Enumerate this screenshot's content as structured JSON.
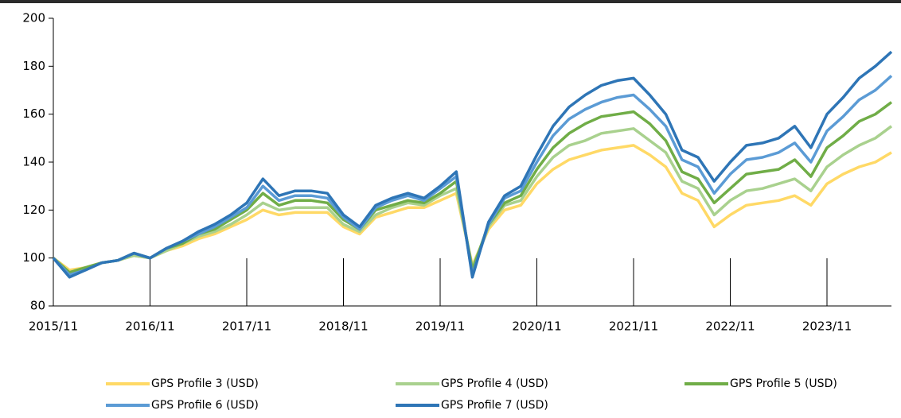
{
  "chart_data": {
    "type": "line",
    "categories": [
      "2015/11",
      null,
      null,
      null,
      null,
      null,
      "2016/11",
      null,
      null,
      null,
      null,
      null,
      "2017/11",
      null,
      null,
      null,
      null,
      null,
      "2018/11",
      null,
      null,
      null,
      null,
      null,
      "2019/11",
      null,
      null,
      null,
      null,
      null,
      "2020/11",
      null,
      null,
      null,
      null,
      null,
      "2021/11",
      null,
      null,
      null,
      null,
      null,
      "2022/11",
      null,
      null,
      null,
      null,
      null,
      "2023/11",
      null,
      null,
      null,
      null
    ],
    "series": [
      {
        "name": "GPS Profile 3 (USD)",
        "color": "#ffd966",
        "values": [
          100,
          95,
          96,
          98,
          99,
          101,
          100,
          103,
          105,
          108,
          110,
          113,
          116,
          120,
          118,
          119,
          119,
          119,
          113,
          110,
          117,
          119,
          121,
          121,
          124,
          127,
          97,
          112,
          120,
          122,
          131,
          137,
          141,
          143,
          145,
          146,
          147,
          143,
          138,
          127,
          124,
          113,
          118,
          122,
          123,
          124,
          126,
          122,
          131,
          135,
          138,
          140,
          144
        ]
      },
      {
        "name": "GPS Profile 4 (USD)",
        "color": "#a9d18e",
        "values": [
          100,
          94,
          96,
          98,
          99,
          101,
          100,
          103,
          106,
          109,
          111,
          114,
          118,
          123,
          120,
          121,
          121,
          121,
          114,
          111,
          118,
          121,
          123,
          122,
          126,
          129,
          96,
          113,
          122,
          124,
          134,
          142,
          147,
          149,
          152,
          153,
          154,
          149,
          144,
          132,
          129,
          118,
          124,
          128,
          129,
          131,
          133,
          128,
          138,
          143,
          147,
          150,
          155
        ]
      },
      {
        "name": "GPS Profile 5 (USD)",
        "color": "#70ad47",
        "values": [
          100,
          94,
          96,
          98,
          99,
          102,
          100,
          104,
          106,
          110,
          112,
          116,
          120,
          127,
          122,
          124,
          124,
          123,
          116,
          112,
          120,
          122,
          124,
          123,
          127,
          132,
          95,
          114,
          123,
          126,
          137,
          146,
          152,
          156,
          159,
          160,
          161,
          156,
          149,
          136,
          133,
          123,
          129,
          135,
          136,
          137,
          141,
          134,
          146,
          151,
          157,
          160,
          165
        ]
      },
      {
        "name": "GPS Profile 6 (USD)",
        "color": "#5b9bd5",
        "values": [
          100,
          93,
          95,
          98,
          99,
          102,
          100,
          104,
          107,
          110,
          113,
          117,
          121,
          130,
          124,
          126,
          126,
          125,
          117,
          112,
          121,
          124,
          126,
          124,
          129,
          134,
          93,
          114,
          125,
          128,
          140,
          151,
          158,
          162,
          165,
          167,
          168,
          162,
          155,
          141,
          138,
          127,
          135,
          141,
          142,
          144,
          148,
          140,
          153,
          159,
          166,
          170,
          176
        ]
      },
      {
        "name": "GPS Profile 7 (USD)",
        "color": "#2e75b6",
        "values": [
          100,
          92,
          95,
          98,
          99,
          102,
          100,
          104,
          107,
          111,
          114,
          118,
          123,
          133,
          126,
          128,
          128,
          127,
          118,
          113,
          122,
          125,
          127,
          125,
          130,
          136,
          92,
          115,
          126,
          130,
          143,
          155,
          163,
          168,
          172,
          174,
          175,
          168,
          160,
          145,
          142,
          132,
          140,
          147,
          148,
          150,
          155,
          146,
          160,
          167,
          175,
          180,
          186
        ]
      }
    ],
    "ylim": [
      80,
      200
    ],
    "yticks": [
      80,
      100,
      120,
      140,
      160,
      180,
      200
    ],
    "grid": false,
    "legend": "bottom"
  }
}
